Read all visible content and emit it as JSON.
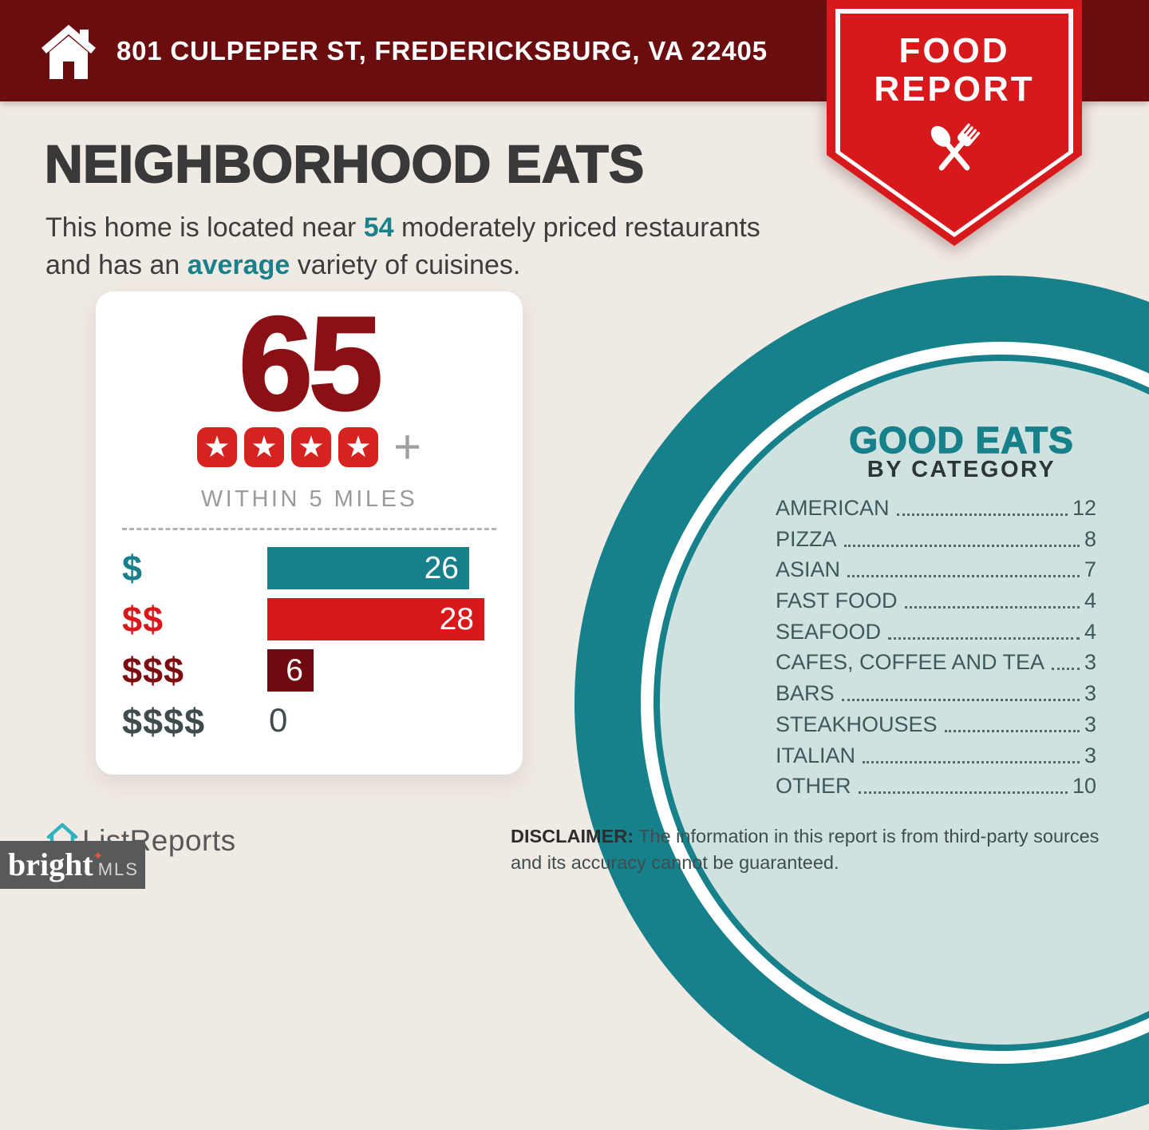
{
  "header": {
    "address": "801 CULPEPER ST, FREDERICKSBURG, VA 22405"
  },
  "badge": {
    "line1": "FOOD",
    "line2": "REPORT",
    "icon": "spoon-fork-crossed-icon"
  },
  "headline": {
    "title": "NEIGHBORHOOD EATS",
    "subtitle_pre": "This home is located near ",
    "subtitle_count": "54",
    "subtitle_mid": " moderately priced restaurants and has an ",
    "subtitle_highlight": "average",
    "subtitle_post": " variety of cuisines."
  },
  "score_card": {
    "score": "65",
    "stars": 4,
    "star_glyph": "★",
    "plus_glyph": "+",
    "caption": "WITHIN 5 MILES"
  },
  "good_eats": {
    "title": "GOOD EATS",
    "subtitle": "BY CATEGORY"
  },
  "chart_data": [
    {
      "type": "bar",
      "title": "Restaurants within 5 miles by price tier",
      "orientation": "horizontal",
      "categories": [
        "$",
        "$$",
        "$$$",
        "$$$$"
      ],
      "values": [
        26,
        28,
        6,
        0
      ],
      "xlim": [
        0,
        28
      ],
      "bar_colors": [
        "#17808a",
        "#d7191c",
        "#6f0b10",
        null
      ],
      "label_colors": [
        "#17808a",
        "#d7191c",
        "#7c0d10",
        "#3f4b4e"
      ],
      "value_labels": true,
      "legend": "none",
      "grid": false
    },
    {
      "type": "table",
      "title": "GOOD EATS BY CATEGORY",
      "categories": [
        "AMERICAN",
        "PIZZA",
        "ASIAN",
        "FAST FOOD",
        "SEAFOOD",
        "CAFES, COFFEE AND TEA",
        "BARS",
        "STEAKHOUSES",
        "ITALIAN",
        "OTHER"
      ],
      "values": [
        12,
        8,
        7,
        4,
        4,
        3,
        3,
        3,
        3,
        10
      ]
    }
  ],
  "footer": {
    "brand": "ListReports",
    "mls_brand": "bright",
    "mls_tm": "TM",
    "mls_star": "✦",
    "mls_suffix": "MLS",
    "disclaimer_label": "DISCLAIMER:",
    "disclaimer_text": " The information in this report is from third-party sources and its accuracy cannot be guaranteed."
  },
  "colors": {
    "header_bg": "#6b0d0f",
    "badge_red": "#d7191c",
    "accent_teal": "#17818b",
    "score_maroon": "#8a1015",
    "mint": "#cfe2df",
    "page_bg": "#f0eae5",
    "star_red": "#d7231f"
  }
}
